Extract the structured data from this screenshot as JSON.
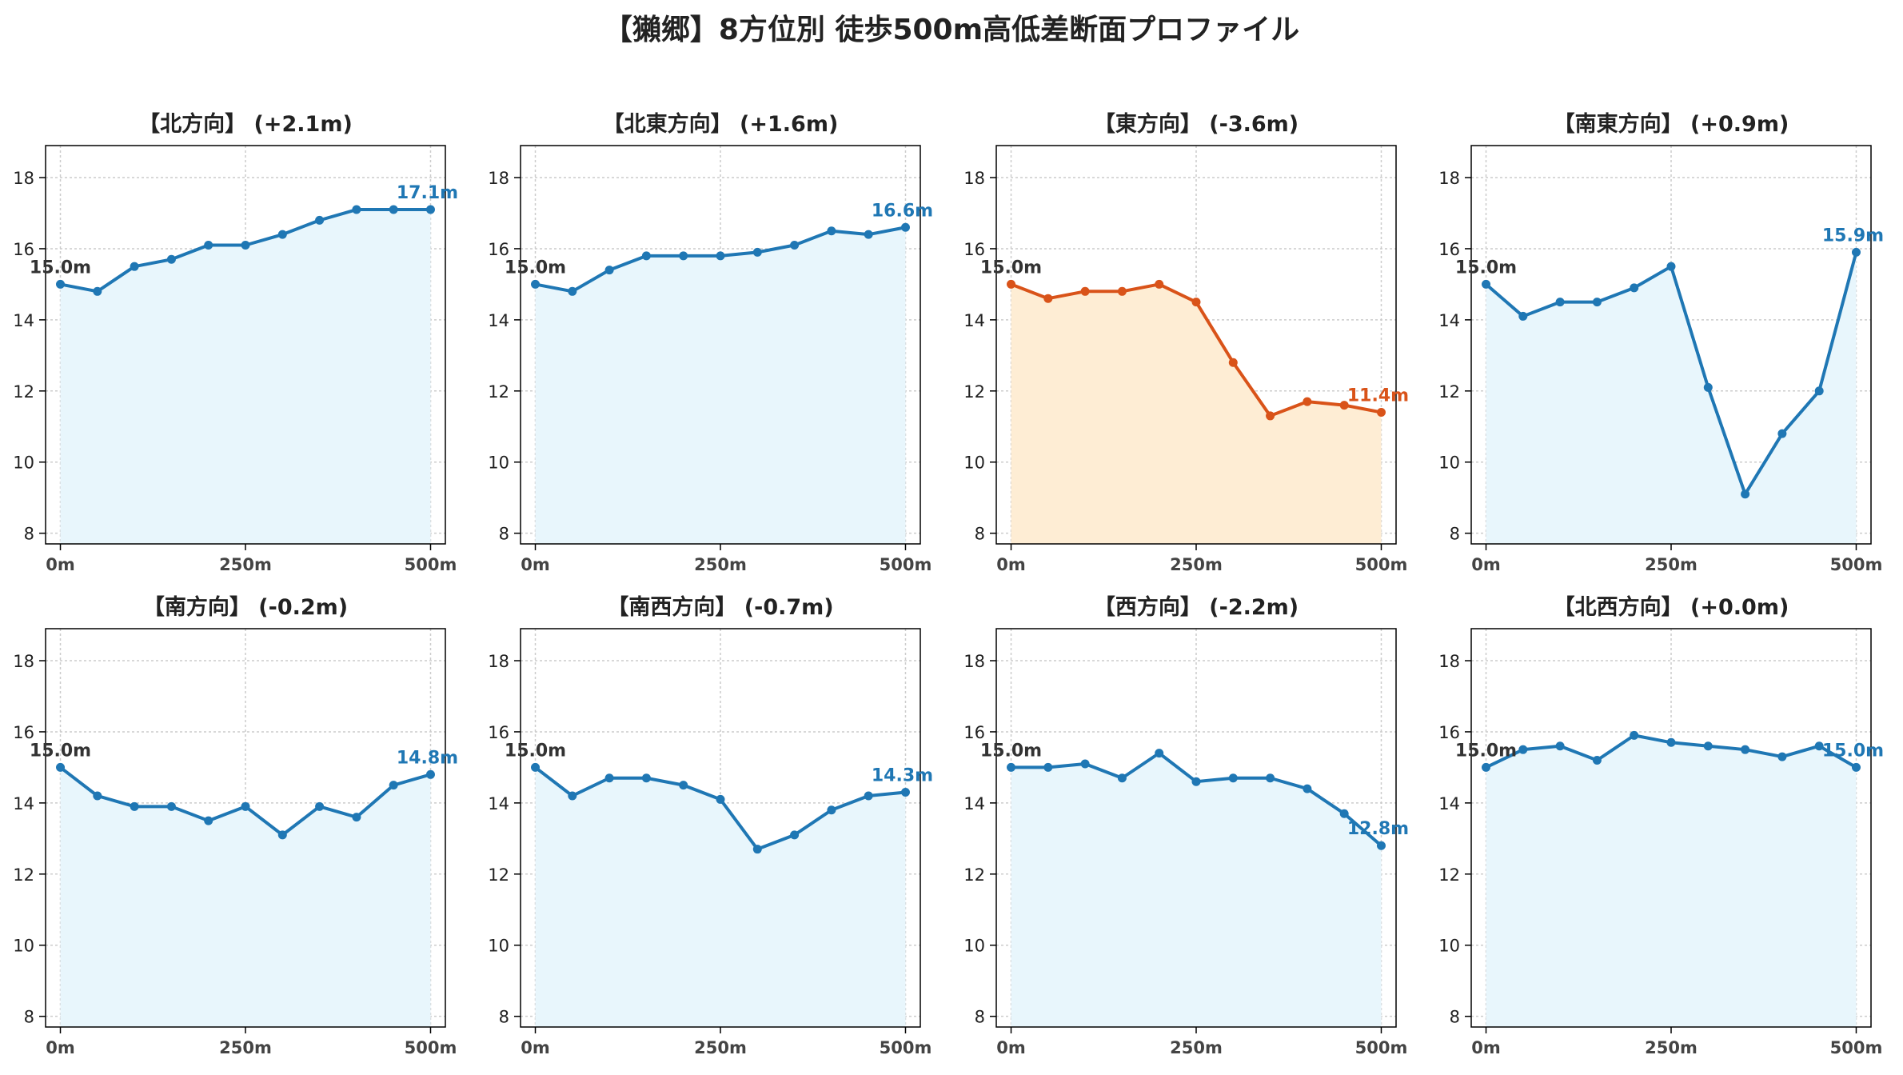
{
  "figure": {
    "title": "【獺郷】8方位別 徒歩500m高低差断面プロファイル"
  },
  "colors": {
    "up_line": "#1f77b4",
    "up_fill": "#e8f6fc",
    "down_line": "#d95319",
    "down_fill": "#feedd4",
    "start_label": "#333333"
  },
  "chart_data": [
    {
      "type": "area",
      "title": "【北方向】 (+2.1m)",
      "x": [
        0,
        50,
        100,
        150,
        200,
        250,
        300,
        350,
        400,
        450,
        500
      ],
      "series": [
        {
          "values": [
            15.0,
            14.8,
            15.5,
            15.7,
            16.1,
            16.1,
            16.4,
            16.8,
            17.1,
            17.1,
            17.1
          ]
        }
      ],
      "xticks": [
        0,
        250,
        500
      ],
      "xtick_labels": [
        "0m",
        "250m",
        "500m"
      ],
      "yticks": [
        8,
        10,
        12,
        14,
        16,
        18
      ],
      "ylim": [
        7.7,
        18.9
      ],
      "xlim": [
        -20,
        520
      ],
      "grid": true,
      "start_label": "15.0m",
      "end_label": "17.1m",
      "style": "up"
    },
    {
      "type": "area",
      "title": "【北東方向】 (+1.6m)",
      "x": [
        0,
        50,
        100,
        150,
        200,
        250,
        300,
        350,
        400,
        450,
        500
      ],
      "series": [
        {
          "values": [
            15.0,
            14.8,
            15.4,
            15.8,
            15.8,
            15.8,
            15.9,
            16.1,
            16.5,
            16.4,
            16.6
          ]
        }
      ],
      "xticks": [
        0,
        250,
        500
      ],
      "xtick_labels": [
        "0m",
        "250m",
        "500m"
      ],
      "yticks": [
        8,
        10,
        12,
        14,
        16,
        18
      ],
      "ylim": [
        7.7,
        18.9
      ],
      "xlim": [
        -20,
        520
      ],
      "grid": true,
      "start_label": "15.0m",
      "end_label": "16.6m",
      "style": "up"
    },
    {
      "type": "area",
      "title": "【東方向】 (-3.6m)",
      "x": [
        0,
        50,
        100,
        150,
        200,
        250,
        300,
        350,
        400,
        450,
        500
      ],
      "series": [
        {
          "values": [
            15.0,
            14.6,
            14.8,
            14.8,
            15.0,
            14.5,
            12.8,
            11.3,
            11.7,
            11.6,
            11.4
          ]
        }
      ],
      "xticks": [
        0,
        250,
        500
      ],
      "xtick_labels": [
        "0m",
        "250m",
        "500m"
      ],
      "yticks": [
        8,
        10,
        12,
        14,
        16,
        18
      ],
      "ylim": [
        7.7,
        18.9
      ],
      "xlim": [
        -20,
        520
      ],
      "grid": true,
      "start_label": "15.0m",
      "end_label": "11.4m",
      "style": "down"
    },
    {
      "type": "area",
      "title": "【南東方向】 (+0.9m)",
      "x": [
        0,
        50,
        100,
        150,
        200,
        250,
        300,
        350,
        400,
        450,
        500
      ],
      "series": [
        {
          "values": [
            15.0,
            14.1,
            14.5,
            14.5,
            14.9,
            15.5,
            12.1,
            9.1,
            10.8,
            12.0,
            15.9
          ]
        }
      ],
      "xticks": [
        0,
        250,
        500
      ],
      "xtick_labels": [
        "0m",
        "250m",
        "500m"
      ],
      "yticks": [
        8,
        10,
        12,
        14,
        16,
        18
      ],
      "ylim": [
        7.7,
        18.9
      ],
      "xlim": [
        -20,
        520
      ],
      "grid": true,
      "start_label": "15.0m",
      "end_label": "15.9m",
      "style": "up"
    },
    {
      "type": "area",
      "title": "【南方向】 (-0.2m)",
      "x": [
        0,
        50,
        100,
        150,
        200,
        250,
        300,
        350,
        400,
        450,
        500
      ],
      "series": [
        {
          "values": [
            15.0,
            14.2,
            13.9,
            13.9,
            13.5,
            13.9,
            13.1,
            13.9,
            13.6,
            14.5,
            14.8
          ]
        }
      ],
      "xticks": [
        0,
        250,
        500
      ],
      "xtick_labels": [
        "0m",
        "250m",
        "500m"
      ],
      "yticks": [
        8,
        10,
        12,
        14,
        16,
        18
      ],
      "ylim": [
        7.7,
        18.9
      ],
      "xlim": [
        -20,
        520
      ],
      "grid": true,
      "start_label": "15.0m",
      "end_label": "14.8m",
      "style": "up"
    },
    {
      "type": "area",
      "title": "【南西方向】 (-0.7m)",
      "x": [
        0,
        50,
        100,
        150,
        200,
        250,
        300,
        350,
        400,
        450,
        500
      ],
      "series": [
        {
          "values": [
            15.0,
            14.2,
            14.7,
            14.7,
            14.5,
            14.1,
            12.7,
            13.1,
            13.8,
            14.2,
            14.3
          ]
        }
      ],
      "xticks": [
        0,
        250,
        500
      ],
      "xtick_labels": [
        "0m",
        "250m",
        "500m"
      ],
      "yticks": [
        8,
        10,
        12,
        14,
        16,
        18
      ],
      "ylim": [
        7.7,
        18.9
      ],
      "xlim": [
        -20,
        520
      ],
      "grid": true,
      "start_label": "15.0m",
      "end_label": "14.3m",
      "style": "up"
    },
    {
      "type": "area",
      "title": "【西方向】 (-2.2m)",
      "x": [
        0,
        50,
        100,
        150,
        200,
        250,
        300,
        350,
        400,
        450,
        500
      ],
      "series": [
        {
          "values": [
            15.0,
            15.0,
            15.1,
            14.7,
            15.4,
            14.6,
            14.7,
            14.7,
            14.4,
            13.7,
            12.8
          ]
        }
      ],
      "xticks": [
        0,
        250,
        500
      ],
      "xtick_labels": [
        "0m",
        "250m",
        "500m"
      ],
      "yticks": [
        8,
        10,
        12,
        14,
        16,
        18
      ],
      "ylim": [
        7.7,
        18.9
      ],
      "xlim": [
        -20,
        520
      ],
      "grid": true,
      "start_label": "15.0m",
      "end_label": "12.8m",
      "style": "up"
    },
    {
      "type": "area",
      "title": "【北西方向】 (+0.0m)",
      "x": [
        0,
        50,
        100,
        150,
        200,
        250,
        300,
        350,
        400,
        450,
        500
      ],
      "series": [
        {
          "values": [
            15.0,
            15.5,
            15.6,
            15.2,
            15.9,
            15.7,
            15.6,
            15.5,
            15.3,
            15.6,
            15.0
          ]
        }
      ],
      "xticks": [
        0,
        250,
        500
      ],
      "xtick_labels": [
        "0m",
        "250m",
        "500m"
      ],
      "yticks": [
        8,
        10,
        12,
        14,
        16,
        18
      ],
      "ylim": [
        7.7,
        18.9
      ],
      "xlim": [
        -20,
        520
      ],
      "grid": true,
      "start_label": "15.0m",
      "end_label": "15.0m",
      "style": "up"
    }
  ]
}
